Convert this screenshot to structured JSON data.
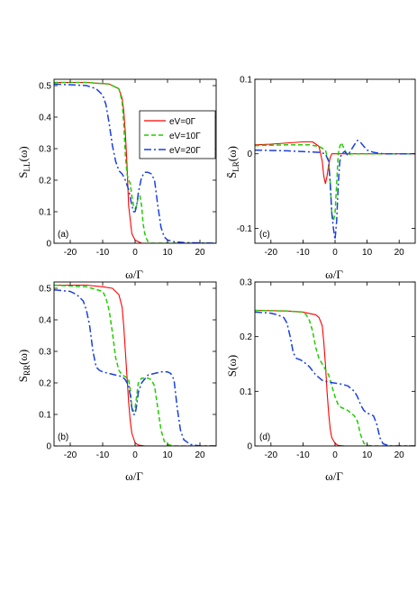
{
  "colors": {
    "eV0": "#ff0000",
    "eV10": "#22cc00",
    "eV20": "#1a3fe0"
  },
  "legend": [
    "eV=0Γ",
    "eV=10Γ",
    "eV=20Γ"
  ],
  "chart_data": [
    {
      "type": "line",
      "panel_label": "(a)",
      "xlabel": "ω/Γ",
      "ylabel": "S",
      "ylabel_sub": "LL",
      "ylabel_arg": "(ω)",
      "xlim": [
        -25,
        25
      ],
      "ylim": [
        0,
        0.52
      ],
      "xticks": [
        "-20",
        "-10",
        "0",
        "10",
        "20"
      ],
      "xtick_values": [
        -20,
        -10,
        0,
        10,
        20
      ],
      "yticks": [
        "0",
        "0.1",
        "0.2",
        "0.3",
        "0.4",
        "0.5"
      ],
      "ytick_values": [
        0,
        0.1,
        0.2,
        0.3,
        0.4,
        0.5
      ],
      "legend_position": "top-right",
      "series": [
        {
          "name": "eV=0Γ",
          "x": [
            -25,
            -15,
            -8,
            -5,
            -4,
            -3.5,
            -3,
            -2.5,
            -2,
            -1,
            0,
            2,
            5,
            25
          ],
          "y": [
            0.51,
            0.51,
            0.505,
            0.49,
            0.46,
            0.42,
            0.35,
            0.25,
            0.12,
            0.03,
            0.01,
            0,
            0,
            0
          ]
        },
        {
          "name": "eV=10Γ",
          "x": [
            -25,
            -15,
            -8,
            -5,
            -4,
            -3.5,
            -3,
            -2.5,
            -2,
            -1.5,
            -1,
            -0.5,
            0,
            0.5,
            1,
            1.5,
            2,
            2.5,
            3,
            3.5,
            4,
            5,
            7,
            10,
            25
          ],
          "y": [
            0.51,
            0.51,
            0.505,
            0.49,
            0.45,
            0.38,
            0.28,
            0.22,
            0.2,
            0.19,
            0.15,
            0.12,
            0.11,
            0.12,
            0.15,
            0.15,
            0.12,
            0.06,
            0.03,
            0.015,
            0.005,
            0,
            0,
            0,
            0
          ]
        },
        {
          "name": "eV=20Γ",
          "x": [
            -25,
            -15,
            -12,
            -10,
            -9,
            -8,
            -7,
            -6,
            -5,
            -4,
            -3,
            -2,
            -1,
            -0.5,
            0,
            0.5,
            1,
            2,
            3,
            4,
            5,
            6,
            7,
            8,
            9,
            10,
            12,
            15,
            25
          ],
          "y": [
            0.505,
            0.5,
            0.49,
            0.47,
            0.44,
            0.38,
            0.31,
            0.26,
            0.23,
            0.22,
            0.2,
            0.17,
            0.12,
            0.1,
            0.1,
            0.12,
            0.16,
            0.21,
            0.225,
            0.225,
            0.22,
            0.2,
            0.12,
            0.05,
            0.02,
            0.01,
            0.005,
            0.002,
            0
          ]
        }
      ]
    },
    {
      "type": "line",
      "panel_label": "(c)",
      "xlabel": "ω/Γ",
      "ylabel": "S",
      "ylabel_bar": "S̄",
      "ylabel_sub": "LR",
      "ylabel_arg": "(ω)",
      "xlim": [
        -25,
        25
      ],
      "ylim": [
        -0.12,
        0.1
      ],
      "xticks": [
        "-20",
        "-10",
        "0",
        "10",
        "20"
      ],
      "xtick_values": [
        -20,
        -10,
        0,
        10,
        20
      ],
      "yticks": [
        "-0.1",
        "0",
        "0.1"
      ],
      "ytick_values": [
        -0.1,
        0,
        0.1
      ],
      "series": [
        {
          "name": "eV=0Γ",
          "x": [
            -25,
            -20,
            -10,
            -7,
            -5,
            -4,
            -3.5,
            -3,
            -2.5,
            -2,
            -1.5,
            -1,
            0,
            2,
            5,
            25
          ],
          "y": [
            0.012,
            0.013,
            0.016,
            0.016,
            0.01,
            -0.01,
            -0.03,
            -0.04,
            -0.03,
            -0.015,
            -0.005,
            0,
            0,
            0,
            0,
            0
          ]
        },
        {
          "name": "eV=10Γ",
          "x": [
            -25,
            -15,
            -8,
            -5,
            -3,
            -2,
            -1.5,
            -1,
            -0.5,
            0,
            0.5,
            1,
            1.5,
            2,
            2.5,
            3,
            4,
            5,
            7,
            10,
            25
          ],
          "y": [
            0.011,
            0.012,
            0.012,
            0.01,
            0.005,
            -0.01,
            -0.04,
            -0.08,
            -0.09,
            -0.08,
            -0.04,
            0,
            0.01,
            0.015,
            0.01,
            0.005,
            -0.002,
            0,
            0,
            0,
            0
          ]
        },
        {
          "name": "eV=20Γ",
          "x": [
            -25,
            -15,
            -10,
            -5,
            -3,
            -2,
            -1.5,
            -1,
            -0.5,
            0,
            0.5,
            1,
            1.5,
            2,
            3,
            4,
            5,
            6,
            7,
            8,
            9,
            10,
            12,
            15,
            25
          ],
          "y": [
            0.005,
            0.004,
            0.003,
            0.002,
            0,
            -0.01,
            -0.04,
            -0.08,
            -0.1,
            -0.115,
            -0.09,
            -0.04,
            -0.01,
            0,
            0.003,
            -0.002,
            0.005,
            0.012,
            0.018,
            0.015,
            0.01,
            0.005,
            0.002,
            0,
            0
          ]
        }
      ]
    },
    {
      "type": "line",
      "panel_label": "(b)",
      "xlabel": "ω/Γ",
      "ylabel": "S",
      "ylabel_sub": "RR",
      "ylabel_arg": "(ω)",
      "xlim": [
        -25,
        25
      ],
      "ylim": [
        0,
        0.52
      ],
      "xticks": [
        "-20",
        "-10",
        "0",
        "10",
        "20"
      ],
      "xtick_values": [
        -20,
        -10,
        0,
        10,
        20
      ],
      "yticks": [
        "0",
        "0.1",
        "0.2",
        "0.3",
        "0.4",
        "0.5"
      ],
      "ytick_values": [
        0,
        0.1,
        0.2,
        0.3,
        0.4,
        0.5
      ],
      "series": [
        {
          "name": "eV=0Γ",
          "x": [
            -25,
            -15,
            -10,
            -7,
            -5,
            -4,
            -3.5,
            -3,
            -2.5,
            -2,
            -1.5,
            -1,
            0,
            1,
            3,
            25
          ],
          "y": [
            0.51,
            0.51,
            0.505,
            0.5,
            0.48,
            0.44,
            0.38,
            0.3,
            0.22,
            0.14,
            0.08,
            0.04,
            0.01,
            0.003,
            0,
            0
          ]
        },
        {
          "name": "eV=10Γ",
          "x": [
            -25,
            -15,
            -10,
            -9,
            -8,
            -7,
            -6,
            -5,
            -4,
            -3,
            -2,
            -1.5,
            -1,
            -0.5,
            0,
            0.5,
            1,
            2,
            3,
            4,
            5,
            6,
            7,
            8,
            9,
            10,
            12,
            25
          ],
          "y": [
            0.51,
            0.505,
            0.49,
            0.47,
            0.43,
            0.36,
            0.28,
            0.24,
            0.225,
            0.22,
            0.21,
            0.18,
            0.12,
            0.11,
            0.12,
            0.16,
            0.2,
            0.215,
            0.215,
            0.215,
            0.21,
            0.19,
            0.12,
            0.05,
            0.015,
            0.005,
            0,
            0
          ]
        },
        {
          "name": "eV=20Γ",
          "x": [
            -25,
            -20,
            -18,
            -16,
            -15,
            -14,
            -13,
            -12,
            -11,
            -10,
            -8,
            -6,
            -4,
            -3,
            -2,
            -1.5,
            -1,
            -0.5,
            0,
            0.5,
            1,
            2,
            4,
            6,
            8,
            10,
            11,
            12,
            13,
            14,
            15,
            17,
            20,
            25
          ],
          "y": [
            0.495,
            0.49,
            0.48,
            0.46,
            0.43,
            0.38,
            0.3,
            0.25,
            0.24,
            0.235,
            0.23,
            0.225,
            0.22,
            0.21,
            0.19,
            0.16,
            0.12,
            0.1,
            0.1,
            0.13,
            0.17,
            0.2,
            0.225,
            0.23,
            0.235,
            0.235,
            0.23,
            0.21,
            0.12,
            0.05,
            0.02,
            0.005,
            0,
            0
          ]
        }
      ]
    },
    {
      "type": "line",
      "panel_label": "(d)",
      "xlabel": "ω/Γ",
      "ylabel": "S",
      "ylabel_sub": "",
      "ylabel_arg": "(ω)",
      "xlim": [
        -25,
        25
      ],
      "ylim": [
        0,
        0.3
      ],
      "xticks": [
        "-20",
        "-10",
        "0",
        "10",
        "20"
      ],
      "xtick_values": [
        -20,
        -10,
        0,
        10,
        20
      ],
      "yticks": [
        "0",
        "0.1",
        "0.2",
        "0.3"
      ],
      "ytick_values": [
        0,
        0.1,
        0.2,
        0.3
      ],
      "series": [
        {
          "name": "eV=0Γ",
          "x": [
            -25,
            -15,
            -10,
            -6,
            -5,
            -4,
            -3.5,
            -3,
            -2.5,
            -2,
            -1.5,
            -1,
            0,
            1,
            3,
            25
          ],
          "y": [
            0.248,
            0.247,
            0.245,
            0.24,
            0.235,
            0.22,
            0.19,
            0.15,
            0.1,
            0.06,
            0.03,
            0.015,
            0.005,
            0.001,
            0,
            0
          ]
        },
        {
          "name": "eV=10Γ",
          "x": [
            -25,
            -15,
            -10,
            -9,
            -8,
            -7,
            -6,
            -5,
            -4,
            -3,
            -2,
            -1,
            0,
            1,
            2,
            3,
            4,
            5,
            6,
            7,
            8,
            9,
            10,
            12,
            25
          ],
          "y": [
            0.248,
            0.247,
            0.245,
            0.24,
            0.23,
            0.21,
            0.18,
            0.16,
            0.15,
            0.14,
            0.13,
            0.11,
            0.09,
            0.075,
            0.07,
            0.068,
            0.065,
            0.06,
            0.055,
            0.045,
            0.02,
            0.005,
            0.001,
            0,
            0
          ]
        },
        {
          "name": "eV=20Γ",
          "x": [
            -25,
            -20,
            -18,
            -16,
            -15,
            -14,
            -13,
            -12,
            -11,
            -10,
            -8,
            -6,
            -4,
            -3,
            -2,
            -1,
            0,
            1,
            2,
            4,
            6,
            7,
            8,
            9,
            10,
            11,
            12,
            13,
            14,
            15,
            17,
            25
          ],
          "y": [
            0.245,
            0.243,
            0.24,
            0.235,
            0.225,
            0.2,
            0.17,
            0.16,
            0.158,
            0.155,
            0.145,
            0.13,
            0.12,
            0.118,
            0.117,
            0.116,
            0.115,
            0.114,
            0.113,
            0.11,
            0.1,
            0.09,
            0.075,
            0.065,
            0.06,
            0.058,
            0.055,
            0.04,
            0.015,
            0.004,
            0,
            0
          ]
        }
      ]
    }
  ]
}
